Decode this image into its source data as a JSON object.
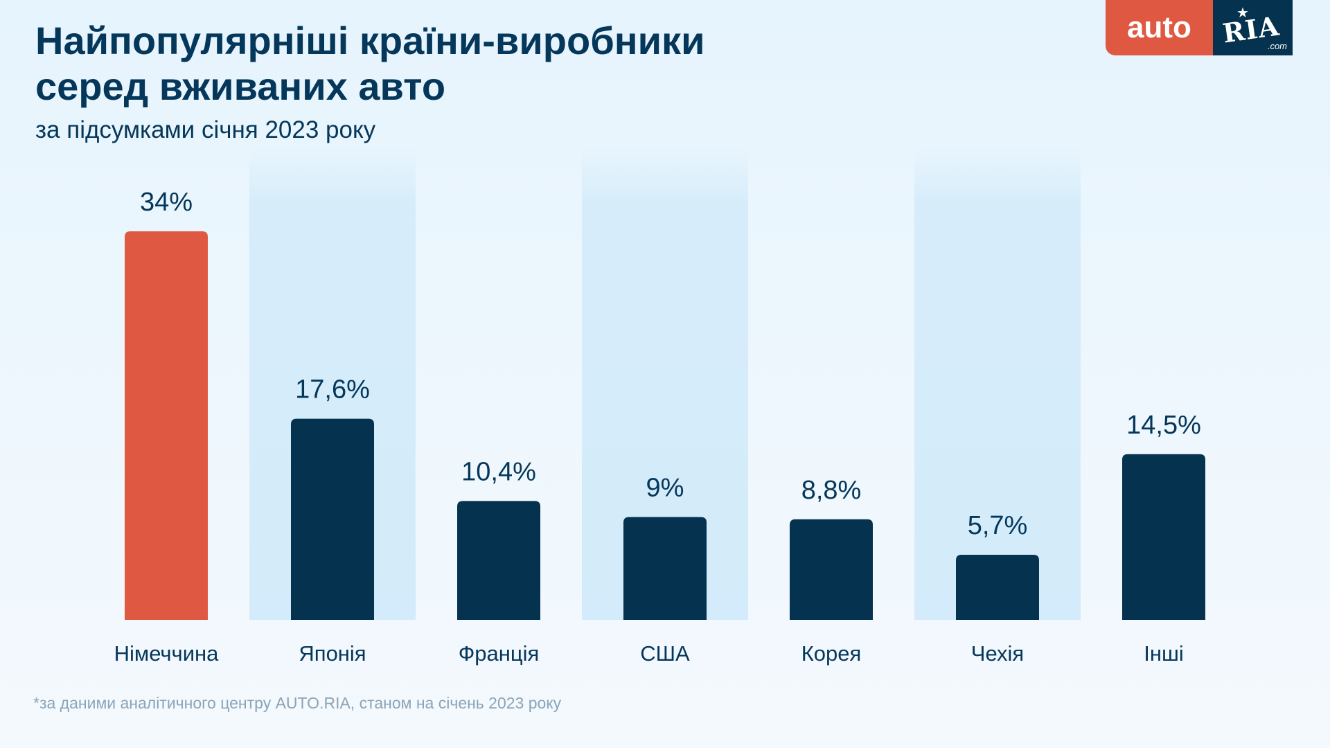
{
  "header": {
    "title_line1": "Найпопулярніші країни-виробники",
    "title_line2": "серед вживаних авто",
    "subtitle": "за підсумками січня 2023 року"
  },
  "logo": {
    "auto": "auto",
    "ria": "RIA",
    "com": ".com"
  },
  "footnote": "*за даними аналітичного центру AUTO.RIA, станом на січень 2023 року",
  "colors": {
    "highlight": "#df5841",
    "bar": "#04324f",
    "title": "#05375a",
    "stripe": "#d3ebfa"
  },
  "chart_data": {
    "type": "bar",
    "categories": [
      "Німеччина",
      "Японія",
      "Франція",
      "США",
      "Корея",
      "Чехія",
      "Інші"
    ],
    "values": [
      34,
      17.6,
      10.4,
      9,
      8.8,
      5.7,
      14.5
    ],
    "value_labels": [
      "34%",
      "17,6%",
      "10,4%",
      "9%",
      "8,8%",
      "5,7%",
      "14,5%"
    ],
    "highlight_index": 0,
    "unit": "%",
    "ylim": [
      0,
      34
    ],
    "grid": false,
    "legend": "none"
  }
}
